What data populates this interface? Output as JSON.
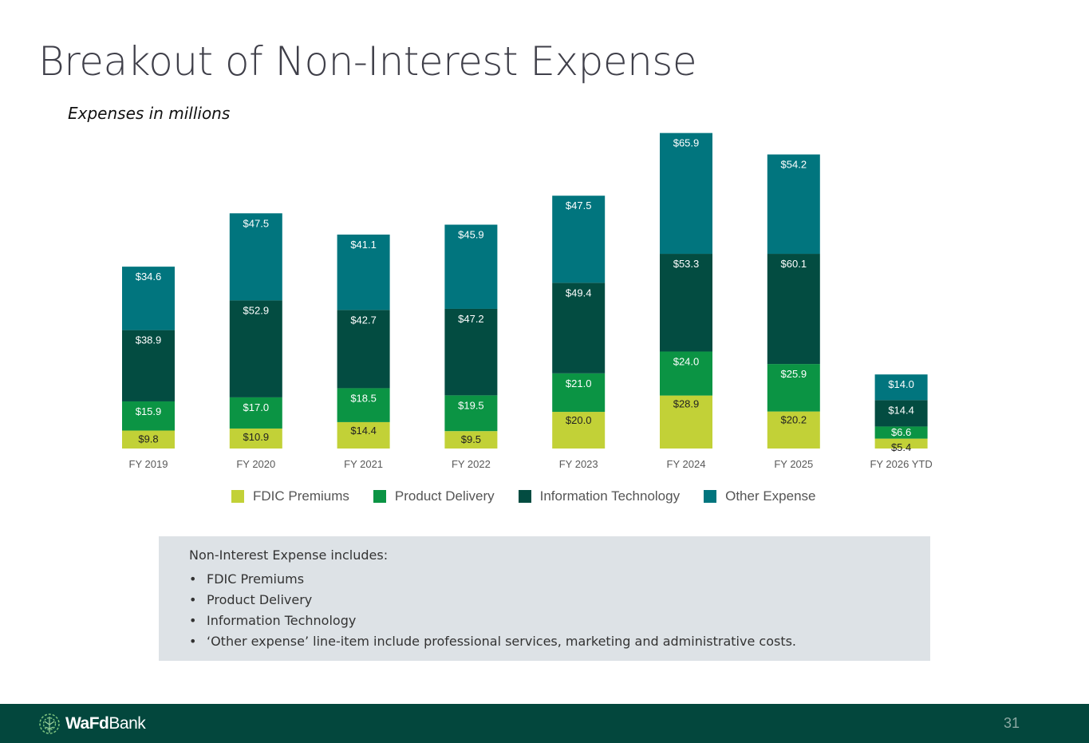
{
  "slide": {
    "title": "Breakout of Non-Interest Expense",
    "subtitle": "Expenses in millions",
    "page_number": "31"
  },
  "brand": {
    "logo_bold": "WaFd",
    "logo_regular": "Bank"
  },
  "colors": {
    "fdic": "#c2d137",
    "product": "#0b9444",
    "it": "#034c41",
    "other": "#01757e",
    "footer": "#03473d"
  },
  "chart_data": {
    "type": "bar",
    "stacked": true,
    "categories": [
      "FY 2019",
      "FY 2020",
      "FY 2021",
      "FY 2022",
      "FY 2023",
      "FY 2024",
      "FY 2025",
      "FY 2026 YTD"
    ],
    "series": [
      {
        "name": "FDIC Premiums",
        "key": "fdic",
        "values": [
          9.8,
          10.9,
          14.4,
          9.5,
          20.0,
          28.9,
          20.2,
          5.4
        ],
        "labels": [
          "$9.8",
          "$10.9",
          "$14.4",
          "$9.5",
          "$20.0",
          "$28.9",
          "$20.2",
          "$5.4"
        ]
      },
      {
        "name": "Product Delivery",
        "key": "product",
        "values": [
          15.9,
          17.0,
          18.5,
          19.5,
          21.0,
          24.0,
          25.9,
          6.6
        ],
        "labels": [
          "$15.9",
          "$17.0",
          "$18.5",
          "$19.5",
          "$21.0",
          "$24.0",
          "$25.9",
          "$6.6"
        ]
      },
      {
        "name": "Information Technology",
        "key": "it",
        "values": [
          38.9,
          52.9,
          42.7,
          47.2,
          49.4,
          53.3,
          60.1,
          14.4
        ],
        "labels": [
          "$38.9",
          "$52.9",
          "$42.7",
          "$47.2",
          "$49.4",
          "$53.3",
          "$60.1",
          "$14.4"
        ]
      },
      {
        "name": "Other Expense",
        "key": "other",
        "values": [
          34.6,
          47.5,
          41.1,
          45.9,
          47.5,
          65.9,
          54.2,
          14.0
        ],
        "labels": [
          "$34.6",
          "$47.5",
          "$41.1",
          "$45.9",
          "$47.5",
          "$65.9",
          "$54.2",
          "$14.0"
        ]
      }
    ],
    "legend": [
      "FDIC Premiums",
      "Product Delivery",
      "Information Technology",
      "Other Expense"
    ],
    "legend_position": "bottom",
    "ylim": [
      0,
      175
    ],
    "grid": false
  },
  "note": {
    "heading": "Non-Interest Expense includes:",
    "items": [
      "FDIC Premiums",
      "Product Delivery",
      "Information Technology",
      "‘Other expense’ line-item include professional services, marketing and administrative costs."
    ],
    "bullet": "•"
  }
}
